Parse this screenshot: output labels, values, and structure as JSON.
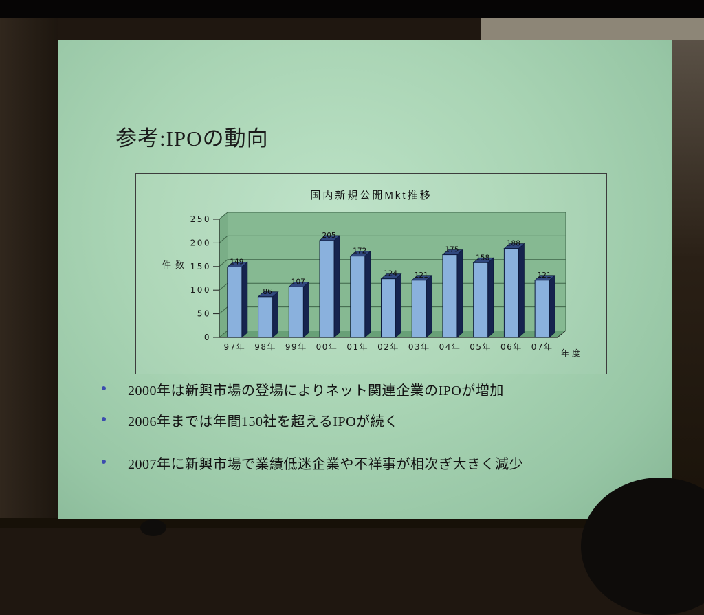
{
  "slide": {
    "title": "参考:IPOの動向",
    "bullets": [
      "2000年は新興市場の登場によりネット関連企業のIPOが増加",
      "2006年までは年間150社を超えるIPOが続く",
      "2007年に新興市場で業績低迷企業や不祥事が相次ぎ大きく減少"
    ],
    "bullet_color": "#3c4cae"
  },
  "chart_data": {
    "type": "bar",
    "style": "3d-bar",
    "title": "国内新規公開Mkt推移",
    "categories": [
      "97年",
      "98年",
      "99年",
      "00年",
      "01年",
      "02年",
      "03年",
      "04年",
      "05年",
      "06年",
      "07年"
    ],
    "values": [
      149,
      86,
      107,
      205,
      172,
      124,
      121,
      175,
      158,
      188,
      121
    ],
    "ylabel": "件数",
    "xlabel": "年度",
    "ylim": [
      0,
      250
    ],
    "yticks": [
      0,
      50,
      100,
      150,
      200,
      250
    ],
    "grid": true,
    "legend": false
  },
  "colors": {
    "screen_bg": "#a9d4b4",
    "plot_back_wall": "#86b992",
    "plot_left_wall": "#7aae87",
    "plot_floor": "#68a077",
    "bar_front": "#8ab1dd",
    "bar_top": "#31487f",
    "bar_side": "#16244e",
    "bar_outline": "#0e1b3d",
    "axis_line": "#222222",
    "grid_line": "#3f6549"
  }
}
